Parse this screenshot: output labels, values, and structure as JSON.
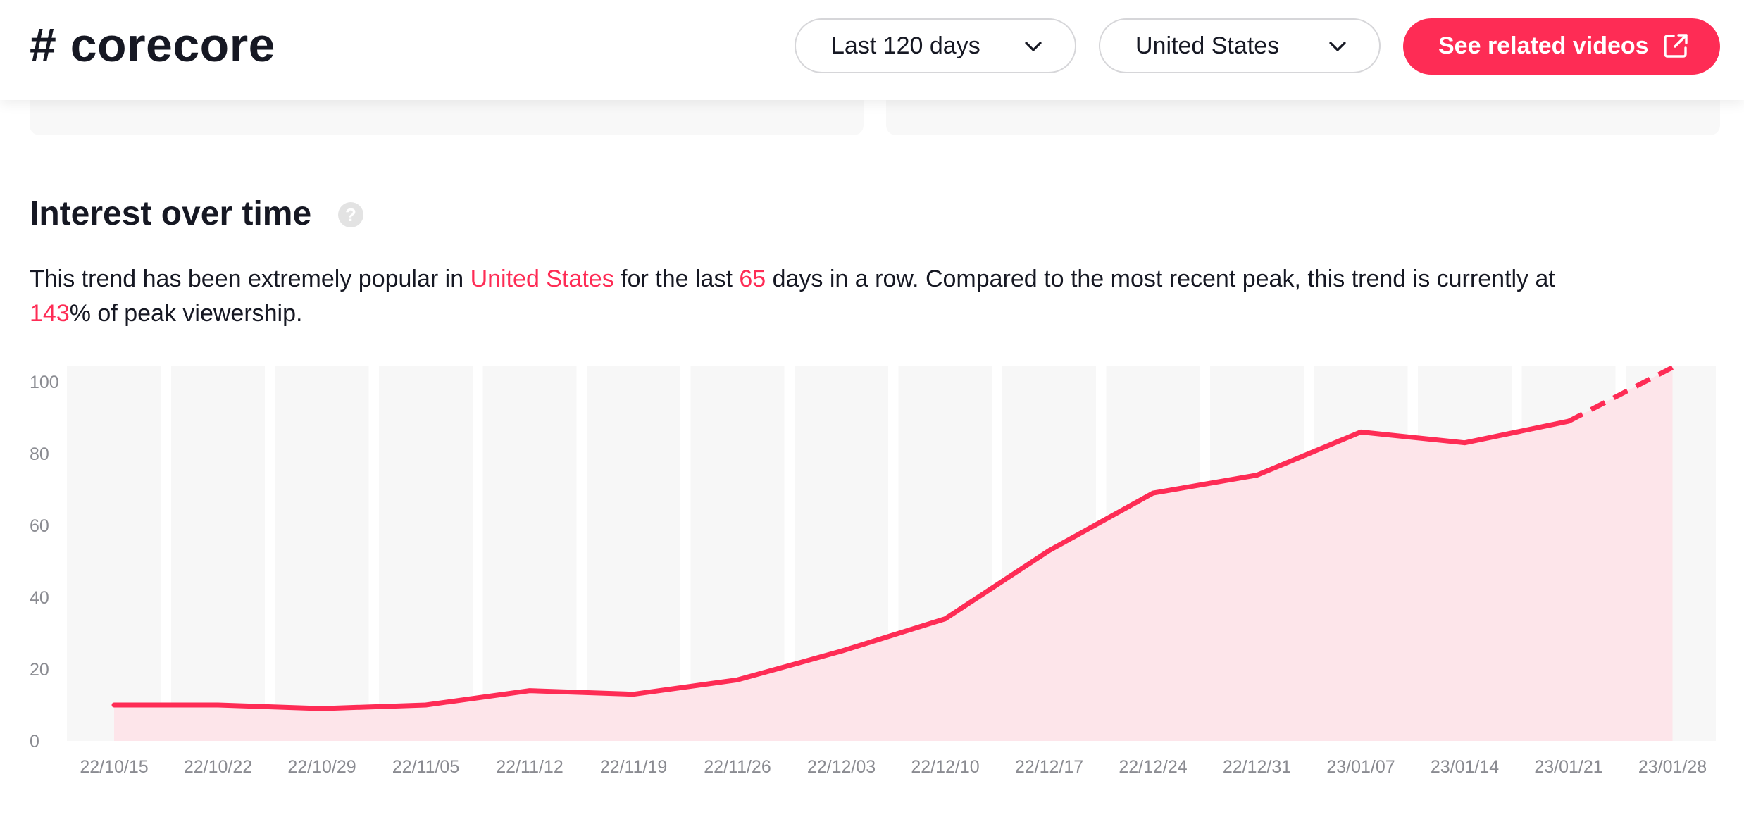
{
  "header": {
    "hashtag": "# corecore",
    "period_label": "Last 120 days",
    "country_label": "United States",
    "cta_label": "See related videos"
  },
  "section": {
    "title": "Interest over time",
    "help_glyph": "?",
    "summary_parts": {
      "p1": "This trend has been extremely popular in ",
      "country": "United States",
      "p2": " for the last ",
      "days": "65",
      "p3": " days in a row. Compared to the most recent peak, this trend is currently at ",
      "percent": "143",
      "p4": "% of peak viewership."
    }
  },
  "colors": {
    "accent": "#fe2c55",
    "area_fill": "#fde2e8",
    "band": "#f7f7f7",
    "tick_text": "#8a8b91"
  },
  "icons": {
    "period_chevron": "chevron-down-icon",
    "country_chevron": "chevron-down-icon",
    "cta_icon": "external-link-icon",
    "help": "question-circle-icon"
  },
  "chart_data": {
    "type": "area",
    "x": [
      "22/10/15",
      "22/10/22",
      "22/10/29",
      "22/11/05",
      "22/11/12",
      "22/11/19",
      "22/11/26",
      "22/12/03",
      "22/12/10",
      "22/12/17",
      "22/12/24",
      "22/12/31",
      "23/01/07",
      "23/01/14",
      "23/01/21",
      "23/01/28"
    ],
    "series": [
      {
        "values": [
          10,
          10,
          9,
          10,
          14,
          13,
          17,
          25,
          34,
          53,
          69,
          74,
          86,
          83,
          89,
          104
        ],
        "dashed_from_index": 14
      }
    ],
    "y_ticks": [
      0,
      20,
      40,
      60,
      80,
      100
    ],
    "ylim": [
      0,
      104
    ],
    "grid": false,
    "legend": "none",
    "title": "",
    "xlabel": "",
    "ylabel": ""
  }
}
